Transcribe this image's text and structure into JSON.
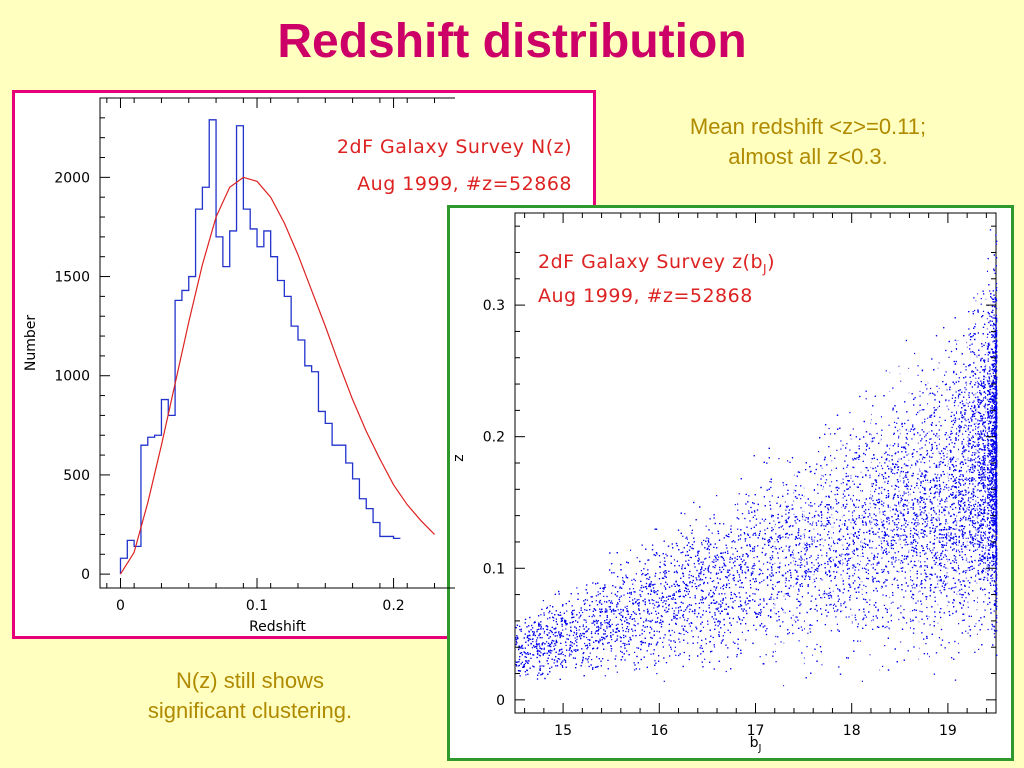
{
  "slide": {
    "title": "Redshift distribution",
    "note_right": [
      "Mean redshift <z>=0.11;",
      "almost all z<0.3."
    ],
    "note_left": [
      "N(z) still shows",
      "significant clustering."
    ]
  },
  "colors": {
    "title": "#cc0066",
    "note": "#b08a00",
    "left_border": "#e6007a",
    "right_border": "#2e9a2e",
    "histogram": "#2233cc",
    "fit": "#dd2222",
    "scatter": "#0000ee",
    "label": "#dd2222"
  },
  "chart_data": [
    {
      "type": "histogram",
      "title_lines": [
        "2dF Galaxy Survey N(z)",
        "Aug 1999, #z=52868"
      ],
      "xlabel": "Redshift",
      "ylabel": "Number",
      "xlim": [
        -0.015,
        0.245
      ],
      "ylim": [
        -70,
        2400
      ],
      "xticks": [
        0,
        0.1,
        0.2
      ],
      "xtick_labels": [
        "0",
        "0.1",
        "0.2"
      ],
      "yticks": [
        0,
        500,
        1000,
        1500,
        2000
      ],
      "ytick_labels": [
        "0",
        "500",
        "1000",
        "1500",
        "2000"
      ],
      "bin_width": 0.005,
      "bins_start": 0,
      "counts": [
        80,
        170,
        140,
        650,
        690,
        700,
        880,
        800,
        1380,
        1430,
        1500,
        1840,
        1950,
        2290,
        1700,
        1550,
        1730,
        2260,
        1840,
        1740,
        1650,
        1730,
        1600,
        1480,
        1400,
        1250,
        1180,
        1050,
        1020,
        820,
        760,
        650,
        650,
        560,
        480,
        380,
        330,
        260,
        190,
        190,
        180
      ],
      "fit_curve": {
        "x": [
          0,
          0.01,
          0.02,
          0.03,
          0.04,
          0.05,
          0.06,
          0.07,
          0.08,
          0.09,
          0.1,
          0.11,
          0.12,
          0.13,
          0.14,
          0.15,
          0.16,
          0.17,
          0.18,
          0.19,
          0.2,
          0.21,
          0.22,
          0.23
        ],
        "y": [
          0,
          110,
          360,
          650,
          960,
          1270,
          1560,
          1800,
          1950,
          2000,
          1980,
          1900,
          1770,
          1610,
          1430,
          1250,
          1060,
          880,
          720,
          580,
          450,
          350,
          270,
          200
        ]
      }
    },
    {
      "type": "scatter",
      "title_lines": [
        "2dF Galaxy Survey z(b",
        "Aug 1999, #z=52868"
      ],
      "title_subscript": "J",
      "title_close": ")",
      "xlabel": "b",
      "xlabel_subscript": "J",
      "ylabel": "z",
      "xlim": [
        14.5,
        19.5
      ],
      "ylim": [
        -0.01,
        0.37
      ],
      "xticks": [
        15,
        16,
        17,
        18,
        19
      ],
      "xtick_labels": [
        "15",
        "16",
        "17",
        "18",
        "19"
      ],
      "yticks": [
        0,
        0.1,
        0.2,
        0.3
      ],
      "ytick_labels": [
        "0",
        "0.1",
        "0.2",
        "0.3"
      ]
    }
  ]
}
